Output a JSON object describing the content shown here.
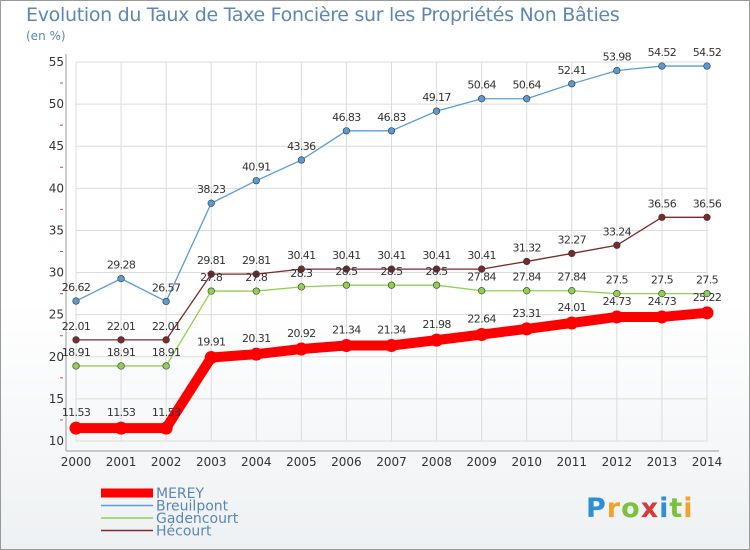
{
  "header": {
    "title": "Evolution du Taux de Taxe Foncière sur les Propriétés Non Bâties",
    "unit": "(en %)"
  },
  "logo": {
    "letters": [
      "P",
      "r",
      "o",
      "x",
      "i",
      "t",
      "i"
    ],
    "colors": [
      "#2e8fd6",
      "#f2a22a",
      "#7cc13e",
      "#d63a3a",
      "#2e8fd6",
      "#7cc13e",
      "#f2a22a"
    ]
  },
  "chart_data": {
    "type": "line",
    "categories": [
      "2000",
      "2001",
      "2002",
      "2003",
      "2004",
      "2005",
      "2006",
      "2007",
      "2008",
      "2009",
      "2010",
      "2011",
      "2012",
      "2013",
      "2014"
    ],
    "ylim": [
      10,
      55
    ],
    "yticks": [
      10,
      15,
      20,
      25,
      30,
      35,
      40,
      45,
      50,
      55
    ],
    "grid": true,
    "legend": "bottom-left",
    "series": [
      {
        "name": "MEREY",
        "color": "#ff0000",
        "width": 10,
        "values": [
          11.53,
          11.53,
          11.53,
          19.91,
          20.31,
          20.92,
          21.34,
          21.34,
          21.98,
          22.64,
          23.31,
          24.01,
          24.73,
          24.73,
          25.22
        ],
        "labels": [
          "11.53",
          "11.53",
          "11.53",
          "19.91",
          "20.31",
          "20.92",
          "21.34",
          "21.34",
          "21.98",
          "22.64",
          "23.31",
          "24.01",
          "24.73",
          "24.73",
          "25.22"
        ]
      },
      {
        "name": "Breuilpont",
        "color": "#5b9bd5",
        "width": 1.3,
        "values": [
          26.62,
          29.28,
          26.57,
          38.23,
          40.91,
          43.36,
          46.83,
          46.83,
          49.17,
          50.64,
          50.64,
          52.41,
          53.98,
          54.52,
          54.52
        ],
        "labels": [
          "26.62",
          "29.28",
          "26.57",
          "38.23",
          "40.91",
          "43.36",
          "46.83",
          "46.83",
          "49.17",
          "50.64",
          "50.64",
          "52.41",
          "53.98",
          "54.52",
          "54.52"
        ]
      },
      {
        "name": "Gadencourt",
        "color": "#8fd14f",
        "width": 1.3,
        "values": [
          18.91,
          18.91,
          18.91,
          27.8,
          27.8,
          28.3,
          28.5,
          28.5,
          28.5,
          27.84,
          27.84,
          27.84,
          27.5,
          27.5,
          27.5
        ],
        "labels": [
          "18.91",
          "18.91",
          "18.91",
          "27.8",
          "27.8",
          "28.3",
          "28.5",
          "28.5",
          "28.5",
          "27.84",
          "27.84",
          "27.84",
          "27.5",
          "27.5",
          "27.5"
        ]
      },
      {
        "name": "Hécourt",
        "color": "#7a2a2a",
        "width": 1.3,
        "values": [
          22.01,
          22.01,
          22.01,
          29.81,
          29.81,
          30.41,
          30.41,
          30.41,
          30.41,
          30.41,
          31.32,
          32.27,
          33.24,
          36.56,
          36.56
        ],
        "labels": [
          "22.01",
          "22.01",
          "22.01",
          "29.81",
          "29.81",
          "30.41",
          "30.41",
          "30.41",
          "30.41",
          "30.41",
          "31.32",
          "32.27",
          "33.24",
          "36.56",
          "36.56"
        ]
      }
    ]
  }
}
